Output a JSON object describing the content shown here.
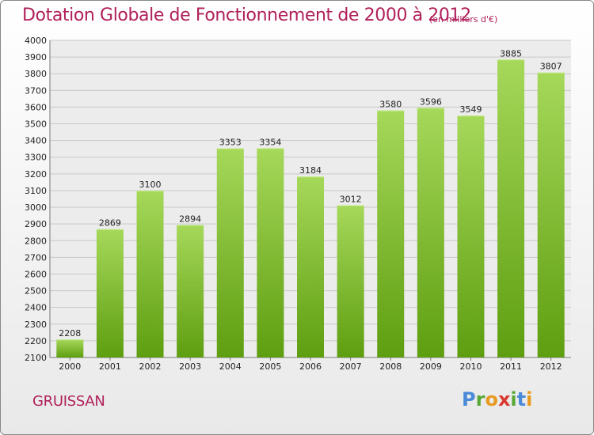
{
  "header": {
    "title": "Dotation Globale de Fonctionnement de 2000 à 2012",
    "unit": "(en milliers d'€)"
  },
  "footer": {
    "city": "GRUISSAN",
    "logo_letters": [
      "P",
      "r",
      "o",
      "x",
      "i",
      "t",
      "i"
    ],
    "logo_colors": [
      "#4a8ad8",
      "#58a838",
      "#e89a20",
      "#d83a30",
      "#58a838",
      "#4a8ad8",
      "#e89a20"
    ]
  },
  "colors": {
    "bar_light": "#a6d85a",
    "bar_dark": "#5e9e10",
    "grid": "#c8c8c8",
    "plot_bg": "#ececec"
  },
  "chart_data": {
    "type": "bar",
    "title": "Dotation Globale de Fonctionnement de 2000 à 2012",
    "subtitle": "(en milliers d'€)",
    "xlabel": "",
    "ylabel": "",
    "categories": [
      "2000",
      "2001",
      "2002",
      "2003",
      "2004",
      "2005",
      "2006",
      "2007",
      "2008",
      "2009",
      "2010",
      "2011",
      "2012"
    ],
    "values": [
      2208,
      2869,
      3100,
      2894,
      3353,
      3354,
      3184,
      3012,
      3580,
      3596,
      3549,
      3885,
      3807
    ],
    "ylim": [
      2100,
      4000
    ],
    "ytick_step": 100,
    "grid": true,
    "legend": "none"
  }
}
